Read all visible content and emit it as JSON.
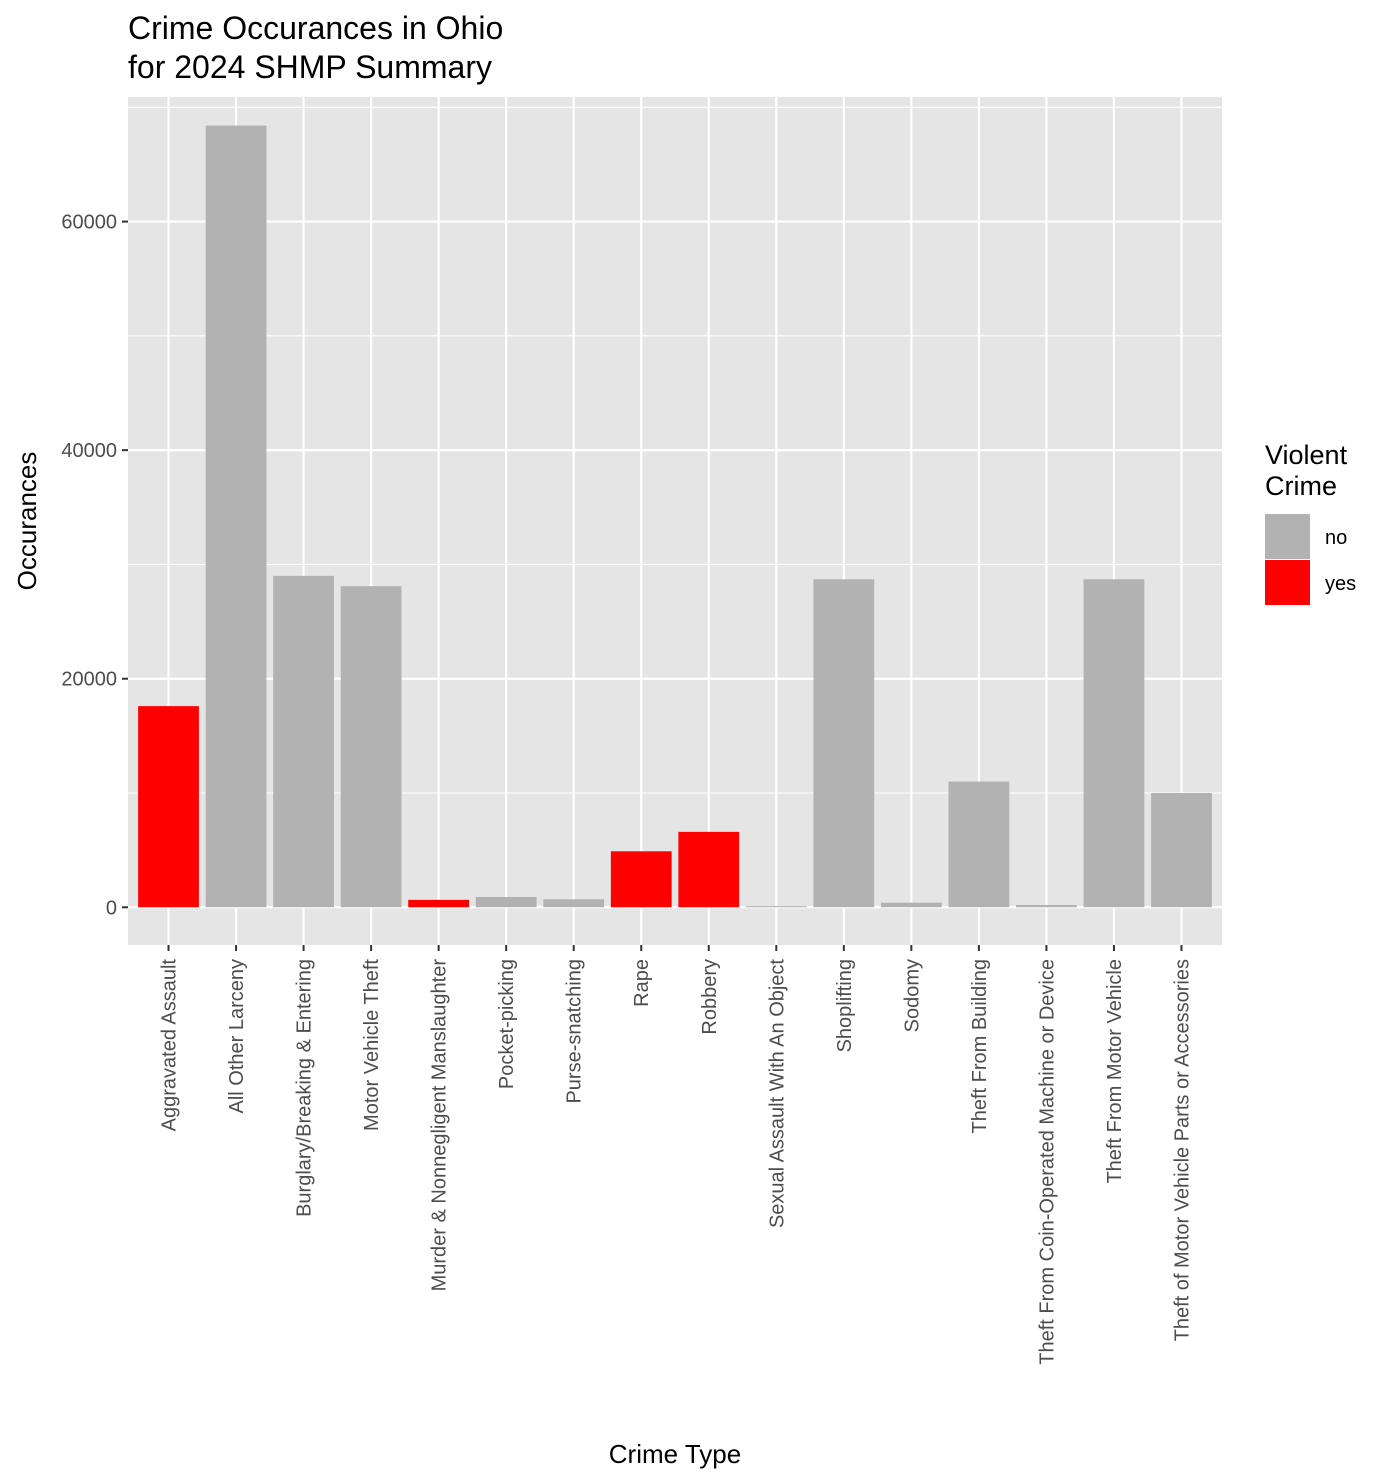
{
  "chart_data": {
    "type": "bar",
    "title_lines": [
      "Crime Occurances in Ohio",
      "for 2024 SHMP Summary"
    ],
    "xlabel": "Crime Type",
    "ylabel": "Occurances",
    "ylim": [
      -3300,
      70900
    ],
    "yticks": [
      0,
      20000,
      40000,
      60000
    ],
    "y_minor_ticks": [
      10000,
      30000,
      50000,
      70000
    ],
    "grid": true,
    "legend": {
      "title_lines": [
        "Violent",
        "Crime"
      ],
      "position": "right",
      "entries": [
        {
          "key": "no",
          "label": "no",
          "color": "#b2b2b2"
        },
        {
          "key": "yes",
          "label": "yes",
          "color": "#ff0000"
        }
      ]
    },
    "categories": [
      "Aggravated Assault",
      "All Other Larceny",
      "Burglary/Breaking & Entering",
      "Motor Vehicle Theft",
      "Murder & Nonnegligent Manslaughter",
      "Pocket-picking",
      "Purse-snatching",
      "Rape",
      "Robbery",
      "Sexual Assault With An Object",
      "Shoplifting",
      "Sodomy",
      "Theft From Building",
      "Theft From Coin-Operated Machine or Device",
      "Theft From Motor Vehicle",
      "Theft of Motor Vehicle Parts or Accessories"
    ],
    "values": [
      17600,
      68400,
      29000,
      28100,
      650,
      900,
      700,
      4900,
      6600,
      100,
      28700,
      400,
      11000,
      200,
      28700,
      10000
    ],
    "violent": [
      "yes",
      "no",
      "no",
      "no",
      "yes",
      "no",
      "no",
      "yes",
      "yes",
      "no",
      "no",
      "no",
      "no",
      "no",
      "no",
      "no"
    ],
    "colors": {
      "panel_bg": "#e5e5e5",
      "grid": "#ffffff",
      "no": "#b2b2b2",
      "yes": "#ff0000"
    }
  }
}
